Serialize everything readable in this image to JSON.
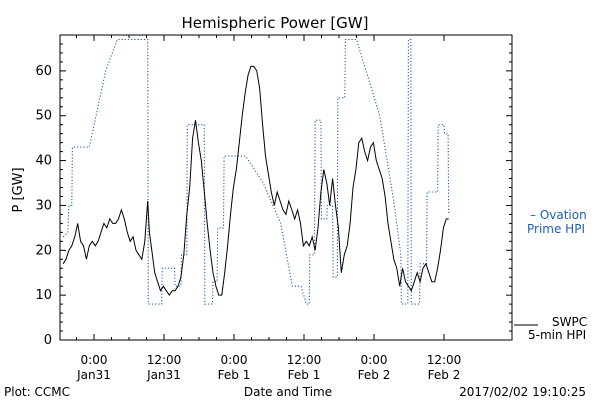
{
  "chart_data": {
    "type": "line",
    "title": "Hemispheric Power [GW]",
    "ylabel": "P [GW]",
    "xlabel": "Date and Time",
    "ylim": [
      0,
      68
    ],
    "xlim_hours": [
      -5,
      46
    ],
    "y_ticks": [
      0,
      10,
      20,
      30,
      40,
      50,
      60
    ],
    "x_ticks": [
      {
        "hour": 0,
        "line1": "0:00",
        "line2": "Jan31"
      },
      {
        "hour": 12,
        "line1": "12:00",
        "line2": "Jan31"
      },
      {
        "hour": 24,
        "line1": "0:00",
        "line2": "Feb 1"
      },
      {
        "hour": 36,
        "line1": "12:00",
        "line2": "Feb 1"
      },
      {
        "hour": 48,
        "line1": "0:00",
        "line2": "Feb 2"
      },
      {
        "hour": 60,
        "line1": "12:00",
        "line2": "Feb 2"
      }
    ],
    "grid": false,
    "series": [
      {
        "name": "SWPC 5-min HPI",
        "color": "#000000",
        "style": "solid",
        "points": [
          [
            -5.3,
            17
          ],
          [
            -4.8,
            18
          ],
          [
            -4.3,
            20
          ],
          [
            -3.8,
            21
          ],
          [
            -3.3,
            23
          ],
          [
            -2.8,
            26
          ],
          [
            -2.3,
            22
          ],
          [
            -1.8,
            21
          ],
          [
            -1.3,
            18
          ],
          [
            -0.8,
            21
          ],
          [
            -0.3,
            22
          ],
          [
            0.2,
            21
          ],
          [
            0.7,
            22
          ],
          [
            1.2,
            24
          ],
          [
            1.7,
            26
          ],
          [
            2.2,
            25
          ],
          [
            2.7,
            27
          ],
          [
            3.2,
            26
          ],
          [
            3.7,
            26
          ],
          [
            4.2,
            27
          ],
          [
            4.7,
            29
          ],
          [
            5.2,
            27
          ],
          [
            5.7,
            24
          ],
          [
            6.2,
            22
          ],
          [
            6.7,
            23
          ],
          [
            7.2,
            20
          ],
          [
            7.7,
            19
          ],
          [
            8.2,
            18
          ],
          [
            8.7,
            22
          ],
          [
            9.2,
            31
          ],
          [
            9.5,
            24
          ],
          [
            9.9,
            20
          ],
          [
            10.4,
            15
          ],
          [
            10.9,
            13
          ],
          [
            11.4,
            11
          ],
          [
            11.9,
            12
          ],
          [
            12.4,
            11
          ],
          [
            12.9,
            10
          ],
          [
            13.4,
            11
          ],
          [
            13.9,
            11
          ],
          [
            14.4,
            12
          ],
          [
            14.9,
            14
          ],
          [
            15.4,
            19
          ],
          [
            15.9,
            28
          ],
          [
            16.4,
            34
          ],
          [
            16.9,
            45
          ],
          [
            17.4,
            49
          ],
          [
            17.9,
            44
          ],
          [
            18.4,
            40
          ],
          [
            18.9,
            33
          ],
          [
            19.4,
            26
          ],
          [
            19.9,
            20
          ],
          [
            20.4,
            15
          ],
          [
            20.9,
            12
          ],
          [
            21.4,
            10
          ],
          [
            21.9,
            10
          ],
          [
            22.4,
            15
          ],
          [
            22.9,
            21
          ],
          [
            23.4,
            28
          ],
          [
            23.9,
            34
          ],
          [
            24.4,
            38
          ],
          [
            24.9,
            44
          ],
          [
            25.4,
            50
          ],
          [
            25.9,
            55
          ],
          [
            26.4,
            59
          ],
          [
            26.9,
            61
          ],
          [
            27.4,
            61
          ],
          [
            27.9,
            60
          ],
          [
            28.4,
            56
          ],
          [
            28.9,
            48
          ],
          [
            29.4,
            41
          ],
          [
            29.9,
            37
          ],
          [
            30.4,
            33
          ],
          [
            30.9,
            30
          ],
          [
            31.4,
            33
          ],
          [
            31.9,
            31
          ],
          [
            32.4,
            29
          ],
          [
            32.9,
            28
          ],
          [
            33.4,
            31
          ],
          [
            33.9,
            29
          ],
          [
            34.4,
            27
          ],
          [
            34.9,
            29
          ],
          [
            35.4,
            26
          ],
          [
            35.9,
            21
          ],
          [
            36.4,
            22
          ],
          [
            36.9,
            21
          ],
          [
            37.4,
            23
          ],
          [
            37.9,
            20
          ],
          [
            38.4,
            25
          ],
          [
            38.9,
            33
          ],
          [
            39.4,
            38
          ],
          [
            39.9,
            35
          ],
          [
            40.4,
            30
          ],
          [
            40.9,
            36
          ],
          [
            41.4,
            30
          ],
          [
            41.9,
            25
          ],
          [
            42.4,
            15
          ],
          [
            42.9,
            19
          ],
          [
            43.4,
            21
          ],
          [
            43.9,
            26
          ],
          [
            44.4,
            34
          ],
          [
            44.9,
            38
          ],
          [
            45.4,
            44
          ],
          [
            45.9,
            45
          ],
          [
            46.4,
            42
          ],
          [
            46.9,
            40
          ],
          [
            47.4,
            43
          ],
          [
            47.9,
            44
          ],
          [
            48.4,
            40
          ],
          [
            48.9,
            38
          ],
          [
            49.4,
            36
          ],
          [
            49.9,
            32
          ],
          [
            50.4,
            26
          ],
          [
            50.9,
            22
          ],
          [
            51.4,
            18
          ],
          [
            51.9,
            16
          ],
          [
            52.4,
            12
          ],
          [
            52.9,
            16
          ],
          [
            53.4,
            13
          ],
          [
            53.9,
            12
          ],
          [
            54.4,
            11
          ],
          [
            54.9,
            13
          ],
          [
            55.4,
            15
          ],
          [
            55.9,
            13
          ],
          [
            56.4,
            16
          ],
          [
            56.9,
            17
          ],
          [
            57.4,
            15
          ],
          [
            57.9,
            13
          ],
          [
            58.4,
            13
          ],
          [
            58.9,
            16
          ],
          [
            59.4,
            20
          ],
          [
            59.9,
            25
          ],
          [
            60.4,
            27
          ],
          [
            60.8,
            27
          ]
        ]
      },
      {
        "name": "Ovation Prime HPI",
        "color": "#1f5fb8",
        "style": "dotted",
        "points": [
          [
            -5.3,
            23
          ],
          [
            -4.5,
            24
          ],
          [
            -4.3,
            30
          ],
          [
            -3.8,
            30
          ],
          [
            -3.7,
            43
          ],
          [
            -1.2,
            43
          ],
          [
            -0.8,
            43
          ],
          [
            2.0,
            60
          ],
          [
            4.0,
            67
          ],
          [
            9.2,
            67
          ],
          [
            9.3,
            8
          ],
          [
            10.0,
            8
          ],
          [
            11.0,
            8
          ],
          [
            11.6,
            8
          ],
          [
            11.7,
            16
          ],
          [
            13.8,
            16
          ],
          [
            13.9,
            12
          ],
          [
            14.9,
            12
          ],
          [
            15.0,
            19
          ],
          [
            15.9,
            19
          ],
          [
            16.0,
            48
          ],
          [
            18.9,
            48
          ],
          [
            19.0,
            8
          ],
          [
            20.3,
            8
          ],
          [
            20.4,
            13
          ],
          [
            21.1,
            13
          ],
          [
            21.2,
            25
          ],
          [
            22.2,
            25
          ],
          [
            22.3,
            41
          ],
          [
            26.0,
            41
          ],
          [
            29.0,
            35
          ],
          [
            32.0,
            26
          ],
          [
            34.0,
            12
          ],
          [
            35.5,
            12
          ],
          [
            36.4,
            8
          ],
          [
            36.9,
            8
          ],
          [
            37.0,
            19
          ],
          [
            37.8,
            19
          ],
          [
            37.9,
            49
          ],
          [
            38.9,
            49
          ],
          [
            39.0,
            27
          ],
          [
            39.9,
            27
          ],
          [
            40.0,
            30
          ],
          [
            40.9,
            30
          ],
          [
            41.0,
            14
          ],
          [
            41.7,
            14
          ],
          [
            41.8,
            54
          ],
          [
            43.0,
            54
          ],
          [
            43.1,
            67
          ],
          [
            45.0,
            67
          ],
          [
            49.0,
            50
          ],
          [
            51.5,
            30
          ],
          [
            52.6,
            19
          ],
          [
            52.7,
            8
          ],
          [
            53.8,
            8
          ],
          [
            53.9,
            67
          ],
          [
            54.3,
            67
          ],
          [
            54.4,
            8
          ],
          [
            55.8,
            8
          ],
          [
            55.9,
            17
          ],
          [
            57.0,
            17
          ],
          [
            57.1,
            33
          ],
          [
            58.9,
            33
          ],
          [
            59.0,
            48
          ],
          [
            60.0,
            48
          ],
          [
            60.1,
            46
          ],
          [
            60.7,
            46
          ],
          [
            60.8,
            28
          ]
        ]
      }
    ],
    "legend_ovation": [
      "– Ovation",
      "Prime HPI"
    ],
    "legend_swpc": [
      "SWPC",
      "5-min HPI"
    ]
  },
  "footer": {
    "plot_credit": "Plot: CCMC",
    "timestamp": "2017/02/02 19:10:25"
  }
}
